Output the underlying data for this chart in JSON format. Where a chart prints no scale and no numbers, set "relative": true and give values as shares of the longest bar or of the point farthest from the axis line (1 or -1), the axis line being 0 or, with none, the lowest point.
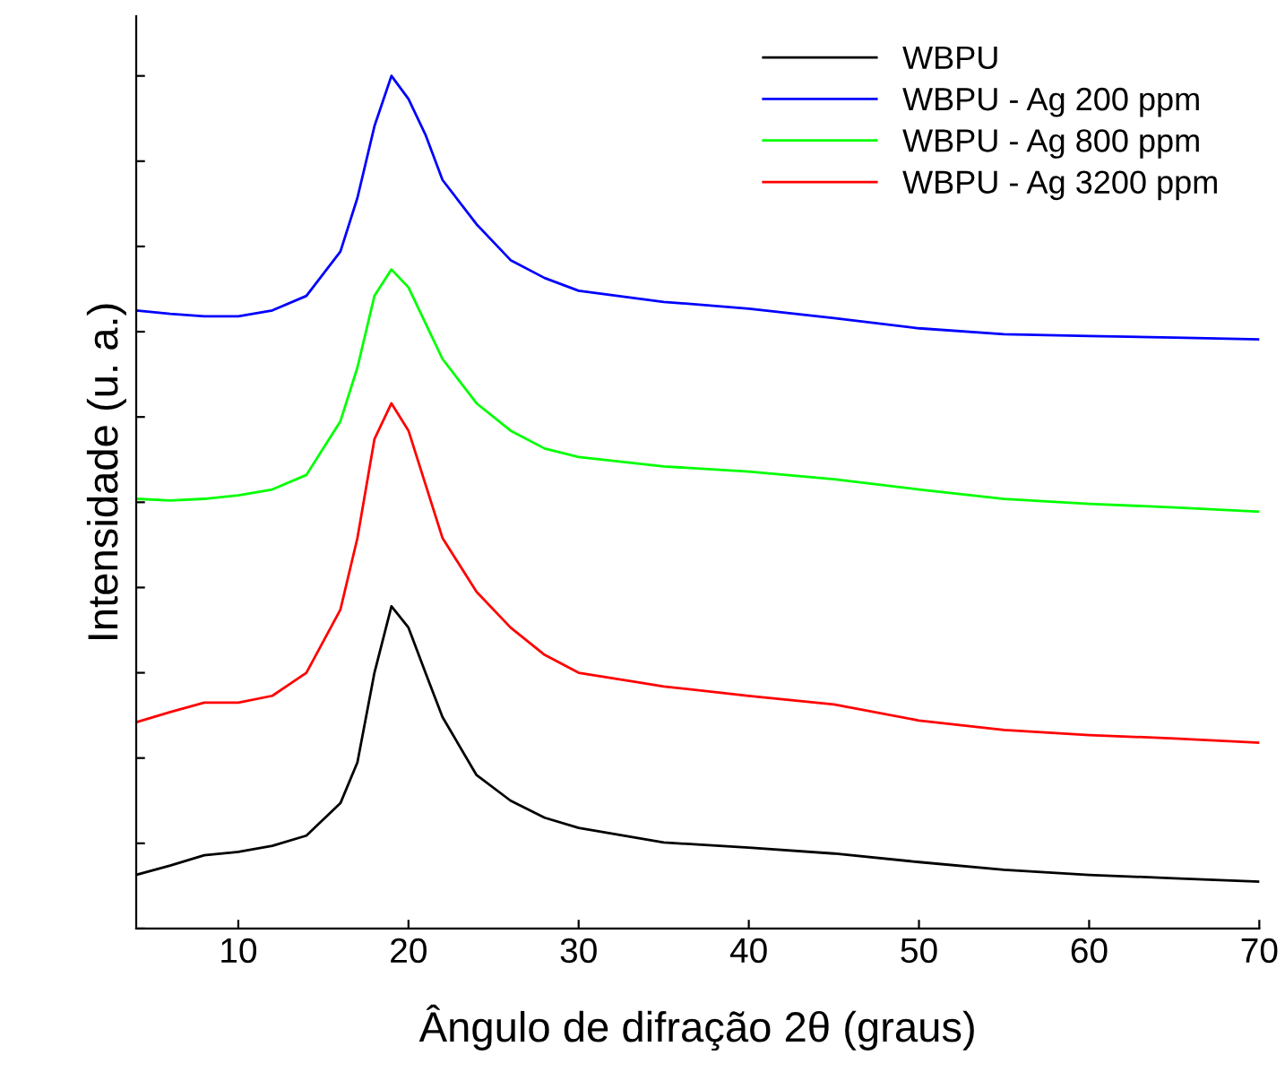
{
  "chart_data": {
    "type": "line",
    "relative": true,
    "xlabel": "Ângulo de difração 2θ (graus)",
    "ylabel": "Intensidade (u. a.)",
    "x": [
      4,
      6,
      8,
      10,
      12,
      14,
      16,
      17,
      18,
      19,
      20,
      21,
      22,
      24,
      26,
      28,
      30,
      35,
      40,
      45,
      50,
      55,
      60,
      65,
      70
    ],
    "xlim": [
      4,
      70
    ],
    "xticks": [
      10,
      20,
      30,
      40,
      50,
      60,
      70
    ],
    "tick_labels": "x",
    "legend": "top right",
    "grid": false,
    "marker": "none",
    "line_style": "solid",
    "series": [
      {
        "name": "WBPU",
        "color": "#000000",
        "values": [
          0.063,
          0.074,
          0.086,
          0.09,
          0.097,
          0.109,
          0.147,
          0.195,
          0.3,
          0.378,
          0.353,
          0.3,
          0.248,
          0.18,
          0.15,
          0.13,
          0.118,
          0.101,
          0.095,
          0.088,
          0.078,
          0.069,
          0.063,
          0.059,
          0.055
        ]
      },
      {
        "name": "WBPU - Ag 200 ppm",
        "color": "#0000ff",
        "values": [
          0.725,
          0.721,
          0.718,
          0.718,
          0.725,
          0.742,
          0.794,
          0.857,
          0.941,
          1.0,
          0.973,
          0.931,
          0.878,
          0.826,
          0.784,
          0.763,
          0.748,
          0.735,
          0.727,
          0.716,
          0.704,
          0.697,
          0.695,
          0.693,
          0.691
        ]
      },
      {
        "name": "WBPU - Ag 800 ppm",
        "color": "#00ff00",
        "values": [
          0.504,
          0.502,
          0.504,
          0.508,
          0.515,
          0.532,
          0.595,
          0.658,
          0.742,
          0.773,
          0.752,
          0.71,
          0.668,
          0.616,
          0.584,
          0.563,
          0.553,
          0.542,
          0.536,
          0.527,
          0.515,
          0.504,
          0.498,
          0.494,
          0.489
        ]
      },
      {
        "name": "WBPU - Ag 3200 ppm",
        "color": "#ff0000",
        "values": [
          0.242,
          0.254,
          0.265,
          0.265,
          0.273,
          0.3,
          0.374,
          0.458,
          0.574,
          0.616,
          0.584,
          0.521,
          0.458,
          0.395,
          0.353,
          0.321,
          0.3,
          0.284,
          0.273,
          0.263,
          0.244,
          0.233,
          0.227,
          0.223,
          0.218
        ]
      }
    ]
  }
}
